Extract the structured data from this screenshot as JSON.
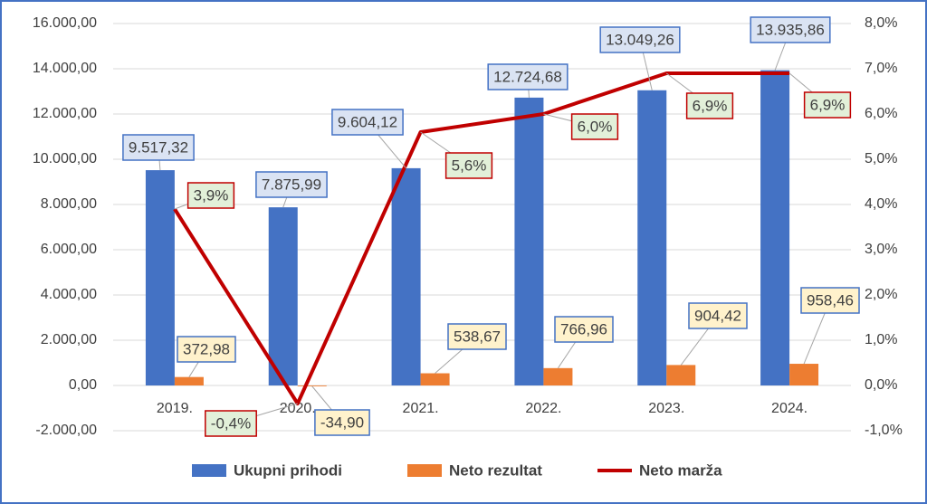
{
  "chart_data": {
    "type": "bar",
    "categories": [
      "2019.",
      "2020.",
      "2021.",
      "2022.",
      "2023.",
      "2024."
    ],
    "series": [
      {
        "name": "Ukupni prihodi",
        "type": "bar",
        "color": "#4472c4",
        "values": [
          9517.32,
          7875.99,
          9604.12,
          12724.68,
          13049.26,
          13935.86
        ],
        "value_labels": [
          "9.517,32",
          "7.875,99",
          "9.604,12",
          "12.724,68",
          "13.049,26",
          "13.935,86"
        ]
      },
      {
        "name": "Neto rezultat",
        "type": "bar",
        "color": "#ed7d31",
        "values": [
          372.98,
          -34.9,
          538.67,
          766.96,
          904.42,
          958.46
        ],
        "value_labels": [
          "372,98",
          "-34,90",
          "538,67",
          "766,96",
          "904,42",
          "958,46"
        ]
      },
      {
        "name": "Neto marža",
        "type": "line",
        "axis": "y2",
        "color": "#c00000",
        "values": [
          3.9,
          -0.4,
          5.6,
          6.0,
          6.9,
          6.9
        ],
        "value_labels": [
          "3,9%",
          "-0,4%",
          "5,6%",
          "6,0%",
          "6,9%",
          "6,9%"
        ]
      }
    ],
    "ylim": [
      -2000,
      16000
    ],
    "yticks": [
      {
        "value": -2000,
        "label": "-2.000,00"
      },
      {
        "value": 0,
        "label": "0,00"
      },
      {
        "value": 2000,
        "label": "2.000,00"
      },
      {
        "value": 4000,
        "label": "4.000,00"
      },
      {
        "value": 6000,
        "label": "6.000,00"
      },
      {
        "value": 8000,
        "label": "8.000,00"
      },
      {
        "value": 10000,
        "label": "10.000,00"
      },
      {
        "value": 12000,
        "label": "12.000,00"
      },
      {
        "value": 14000,
        "label": "14.000,00"
      },
      {
        "value": 16000,
        "label": "16.000,00"
      }
    ],
    "y2lim": [
      -1,
      8
    ],
    "y2ticks": [
      {
        "value": -1,
        "label": "-1,0%"
      },
      {
        "value": 0,
        "label": "0,0%"
      },
      {
        "value": 1,
        "label": "1,0%"
      },
      {
        "value": 2,
        "label": "2,0%"
      },
      {
        "value": 3,
        "label": "3,0%"
      },
      {
        "value": 4,
        "label": "4,0%"
      },
      {
        "value": 5,
        "label": "5,0%"
      },
      {
        "value": 6,
        "label": "6,0%"
      },
      {
        "value": 7,
        "label": "7,0%"
      },
      {
        "value": 8,
        "label": "8,0%"
      }
    ],
    "grid": true,
    "legend": "bottom"
  }
}
